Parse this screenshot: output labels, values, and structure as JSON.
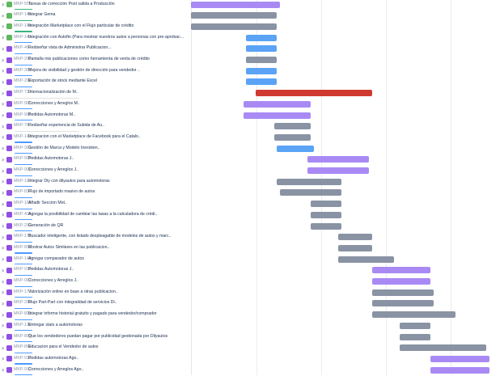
{
  "colors": {
    "purple": "#a98af4",
    "grey": "#8993a4",
    "blue": "#5aa3f6",
    "red": "#cf3a30"
  },
  "rows": [
    {
      "key": "MKP-556",
      "summary": "Tareas de corrección Post salida a Producción",
      "icon": "green",
      "bar": {
        "start": 0.0,
        "end": 0.29,
        "color": "purple"
      },
      "underline": "green"
    },
    {
      "key": "MKP-145",
      "summary": "Integrar Gema",
      "icon": "green",
      "bar": {
        "start": 0.0,
        "end": 0.28,
        "color": "grey"
      },
      "underline": "green"
    },
    {
      "key": "MKP-146",
      "summary": "Integración Marketplace con el Flujo particular de crédito",
      "icon": "green",
      "bar": {
        "start": 0.0,
        "end": 0.28,
        "color": "grey"
      },
      "underline": "green"
    },
    {
      "key": "MKP-143",
      "summary": "Integración con Autofin (Para mostrar nuestros autos a personas con pre-aprobac...",
      "icon": "green",
      "bar": {
        "start": 0.18,
        "end": 0.28,
        "color": "blue"
      },
      "underline": "blue"
    },
    {
      "key": "MKP-46",
      "summary": "Rediseñar vista de Administrar Publicacion...",
      "icon": "purple",
      "bar": {
        "start": 0.18,
        "end": 0.28,
        "color": "blue"
      },
      "underline": "blue"
    },
    {
      "key": "MKP-203",
      "summary": "Pantalla mis publicaciones como herramienta de venta de crédito",
      "icon": "purple",
      "bar": {
        "start": 0.18,
        "end": 0.28,
        "color": "grey"
      },
      "underline": "blue"
    },
    {
      "key": "MKP-307",
      "summary": "Mejora de visibilidad y gestión de dirección para vendedor ..",
      "icon": "purple",
      "bar": {
        "start": 0.18,
        "end": 0.28,
        "color": "blue"
      },
      "underline": "blue"
    },
    {
      "key": "MKP-208",
      "summary": "Exportación de stock mediante Excel",
      "icon": "purple",
      "bar": {
        "start": 0.18,
        "end": 0.28,
        "color": "blue"
      },
      "underline": "blue"
    },
    {
      "key": "MKP-717",
      "summary": "Internacionalización de M..",
      "icon": "purple",
      "bar": {
        "start": 0.21,
        "end": 0.59,
        "color": "red"
      },
      "underline": "grey"
    },
    {
      "key": "MKP-905",
      "summary": "Correcciones y Arreglos M..",
      "icon": "purple",
      "bar": {
        "start": 0.17,
        "end": 0.39,
        "color": "purple"
      },
      "underline": "blue"
    },
    {
      "key": "MKP-906",
      "summary": "Pedidas Automotoras M..",
      "icon": "purple",
      "bar": {
        "start": 0.17,
        "end": 0.39,
        "color": "purple"
      },
      "underline": "blue"
    },
    {
      "key": "MKP-76",
      "summary": "Rediseñar experiencia de Subida de Au..",
      "icon": "purple",
      "bar": {
        "start": 0.27,
        "end": 0.39,
        "color": "grey"
      },
      "underline": "grey"
    },
    {
      "key": "MKP-143",
      "summary": "Integracion con el Marketplace de Facebook para el Catalo..",
      "icon": "purple",
      "bar": {
        "start": 0.27,
        "end": 0.39,
        "color": "grey"
      },
      "underline": "blue"
    },
    {
      "key": "MKP-301",
      "summary": "Gestión de Marca y Modelo Inexisten..",
      "icon": "purple",
      "bar": {
        "start": 0.28,
        "end": 0.4,
        "color": "blue"
      },
      "underline": "blue"
    },
    {
      "key": "MKP-909",
      "summary": "Pedidas Automotoras J..",
      "icon": "purple",
      "bar": {
        "start": 0.38,
        "end": 0.58,
        "color": "purple"
      },
      "underline": "blue"
    },
    {
      "key": "MKP-908",
      "summary": "Correcciones y Arreglos J..",
      "icon": "purple",
      "bar": {
        "start": 0.38,
        "end": 0.58,
        "color": "purple"
      },
      "underline": "blue"
    },
    {
      "key": "MKP-117",
      "summary": "Integrar Diy con dilyautos para automotoras",
      "icon": "purple",
      "bar": {
        "start": 0.28,
        "end": 0.49,
        "color": "grey"
      },
      "underline": "blue"
    },
    {
      "key": "MKP-837",
      "summary": "Flujo de importado masivo de autos",
      "icon": "purple",
      "bar": {
        "start": 0.29,
        "end": 0.49,
        "color": "grey"
      },
      "underline": "blue"
    },
    {
      "key": "MKP-166",
      "summary": "Añadir Seccion Mot..",
      "icon": "purple",
      "bar": {
        "start": 0.39,
        "end": 0.49,
        "color": "grey"
      },
      "underline": "blue"
    },
    {
      "key": "MKP-405",
      "summary": "Agregar la posibilidad de cambiar las tasas a la calculadora de crédi..",
      "icon": "purple",
      "bar": {
        "start": 0.39,
        "end": 0.49,
        "color": "grey"
      },
      "underline": "blue"
    },
    {
      "key": "MKP-292",
      "summary": "Generación de QR",
      "icon": "purple",
      "bar": {
        "start": 0.39,
        "end": 0.49,
        "color": "grey"
      },
      "underline": "blue"
    },
    {
      "key": "MKP-170",
      "summary": "Buscador inteligente, con listado despleagable de modelos de autos y marc..",
      "icon": "purple",
      "bar": {
        "start": 0.48,
        "end": 0.59,
        "color": "grey"
      },
      "underline": "blue"
    },
    {
      "key": "MKP-802",
      "summary": "Mostrar Autos Similares en las publicacion..",
      "icon": "purple",
      "bar": {
        "start": 0.48,
        "end": 0.59,
        "color": "grey"
      },
      "underline": "blue"
    },
    {
      "key": "MKP-149",
      "summary": "Agregar comparador de autos",
      "icon": "purple",
      "bar": {
        "start": 0.48,
        "end": 0.66,
        "color": "grey"
      },
      "underline": "blue"
    },
    {
      "key": "MKP-910",
      "summary": "Pedidas Automotoras J..",
      "icon": "purple",
      "bar": {
        "start": 0.59,
        "end": 0.78,
        "color": "purple"
      },
      "underline": "blue"
    },
    {
      "key": "MKP-907",
      "summary": "Correcciones y Arreglos J..",
      "icon": "purple",
      "bar": {
        "start": 0.59,
        "end": 0.78,
        "color": "purple"
      },
      "underline": "blue"
    },
    {
      "key": "MKP-177",
      "summary": "Valorización online en base a otras publicacion..",
      "icon": "purple",
      "bar": {
        "start": 0.59,
        "end": 0.79,
        "color": "grey"
      },
      "underline": "blue"
    },
    {
      "key": "MKP-290",
      "summary": "Flujo Part-Part con integralidad de servicios Di..",
      "icon": "purple",
      "bar": {
        "start": 0.59,
        "end": 0.79,
        "color": "grey"
      },
      "underline": "blue"
    },
    {
      "key": "MKP-802",
      "summary": "Integrar informe historial gratuito y pagado para vendedor/comprador",
      "icon": "purple",
      "bar": {
        "start": 0.59,
        "end": 0.86,
        "color": "grey"
      },
      "underline": "blue"
    },
    {
      "key": "MKP-139",
      "summary": "Entregar stats a automotoras",
      "icon": "purple",
      "bar": {
        "start": 0.68,
        "end": 0.78,
        "color": "grey"
      },
      "underline": "blue"
    },
    {
      "key": "MKP-805",
      "summary": "Que los vendedores puedan pagar por publicidad gestionada por Dilyautos",
      "icon": "purple",
      "bar": {
        "start": 0.68,
        "end": 0.78,
        "color": "grey"
      },
      "underline": "blue"
    },
    {
      "key": "MKP-860",
      "summary": "Educacion para el Vendedor de autos",
      "icon": "purple",
      "bar": {
        "start": 0.68,
        "end": 0.96,
        "color": "grey"
      },
      "underline": "blue"
    },
    {
      "key": "MKP-913",
      "summary": "Pedidas automotoras Ago..",
      "icon": "purple",
      "bar": {
        "start": 0.78,
        "end": 0.97,
        "color": "purple"
      },
      "underline": "blue"
    },
    {
      "key": "MKP-912",
      "summary": "Correcciones y Arreglos Ago..",
      "icon": "purple",
      "bar": {
        "start": 0.78,
        "end": 0.97,
        "color": "purple"
      },
      "underline": "blue"
    }
  ]
}
